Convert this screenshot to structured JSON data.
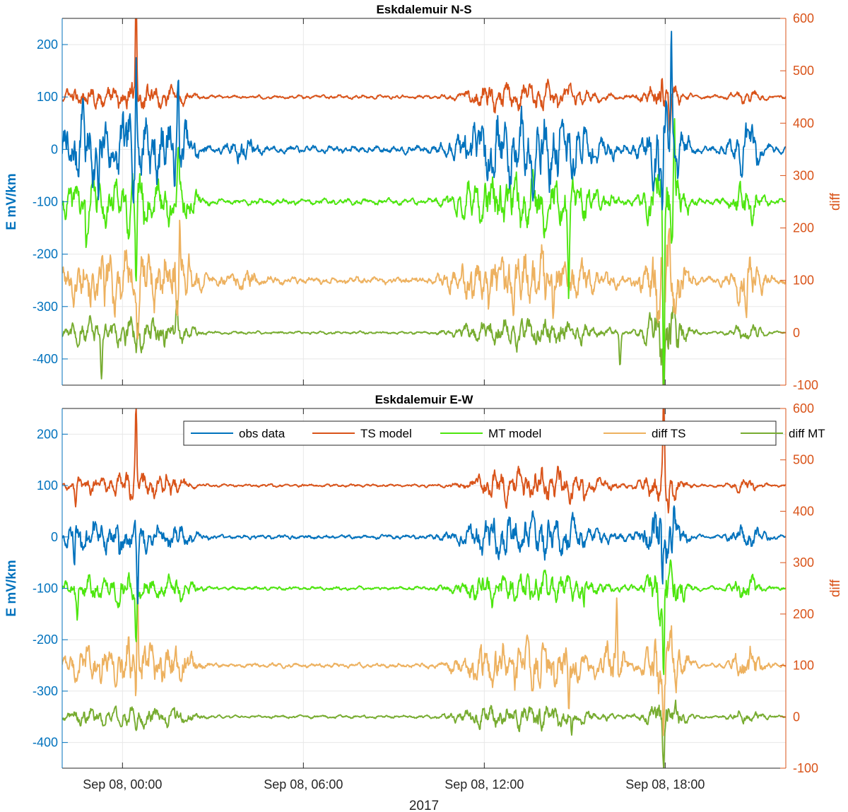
{
  "chart_data": [
    {
      "type": "line",
      "title": "Eskdalemuir N-S",
      "ylabel_left": "E mV/km",
      "ylabel_right": "diff",
      "xlabel": "",
      "x_range_hours": [
        -2.0,
        22.0
      ],
      "ylim_left": [
        -450,
        250
      ],
      "ylim_right": [
        -100,
        600
      ],
      "yticks_left": [
        -400,
        -300,
        -200,
        -100,
        0,
        100,
        200
      ],
      "yticks_right": [
        -100,
        0,
        100,
        200,
        300,
        400,
        500,
        600
      ],
      "xticks": [
        "Sep 08, 00:00",
        "Sep 08, 06:00",
        "Sep 08, 12:00",
        "Sep 08, 18:00"
      ],
      "xtick_hours": [
        0,
        6,
        12,
        18
      ],
      "grid": true,
      "legend": false,
      "series": [
        {
          "name": "obs data",
          "color": "#0072BD",
          "axis": "left",
          "baseline": 0,
          "bursts": [
            [
              -1.4,
              0.8,
              80
            ],
            [
              0.4,
              1.0,
              95
            ],
            [
              1.8,
              0.6,
              70
            ],
            [
              4.0,
              0.5,
              25
            ],
            [
              12.0,
              1.0,
              60
            ],
            [
              14.0,
              1.7,
              90
            ],
            [
              18.0,
              0.6,
              120
            ],
            [
              20.7,
              0.5,
              60
            ]
          ],
          "quiet": 10,
          "spikes": [
            [
              -1.3,
              70
            ],
            [
              -0.8,
              -120
            ],
            [
              0.45,
              175
            ],
            [
              1.85,
              140
            ],
            [
              18.2,
              185
            ],
            [
              17.9,
              -120
            ]
          ]
        },
        {
          "name": "TS model",
          "color": "#D95319",
          "axis": "left",
          "baseline": 100,
          "bursts": [
            [
              -1.2,
              0.8,
              25
            ],
            [
              0.4,
              0.9,
              35
            ],
            [
              1.7,
              0.6,
              20
            ],
            [
              12.2,
              0.8,
              25
            ],
            [
              14.0,
              1.6,
              35
            ],
            [
              17.9,
              0.6,
              40
            ],
            [
              20.7,
              0.5,
              15
            ]
          ],
          "quiet": 5,
          "spikes": [
            [
              0.45,
              190
            ],
            [
              17.9,
              60
            ],
            [
              18.15,
              -60
            ]
          ]
        },
        {
          "name": "MT model",
          "color": "#4DE60E",
          "axis": "left",
          "baseline": -100,
          "bursts": [
            [
              -1.3,
              0.8,
              55
            ],
            [
              0.4,
              1.0,
              70
            ],
            [
              1.8,
              0.6,
              60
            ],
            [
              12.0,
              1.0,
              50
            ],
            [
              14.0,
              1.7,
              70
            ],
            [
              18.0,
              0.6,
              110
            ],
            [
              20.7,
              0.5,
              45
            ]
          ],
          "quiet": 8,
          "spikes": [
            [
              -1.2,
              -80
            ],
            [
              0.45,
              -150
            ],
            [
              1.85,
              70
            ],
            [
              14.8,
              -150
            ],
            [
              17.95,
              -350
            ],
            [
              18.3,
              150
            ]
          ]
        }
      ],
      "diff_series": [
        {
          "name": "diff TS",
          "color": "#EDB15F",
          "axis": "right",
          "baseline": 100,
          "bursts": [
            [
              -1.2,
              0.9,
              60
            ],
            [
              0.4,
              1.0,
              80
            ],
            [
              1.8,
              0.7,
              70
            ],
            [
              4.0,
              0.6,
              25
            ],
            [
              12.0,
              1.0,
              55
            ],
            [
              14.0,
              1.7,
              75
            ],
            [
              18.0,
              0.6,
              130
            ],
            [
              20.7,
              0.5,
              60
            ]
          ],
          "quiet": 10,
          "spikes": [
            [
              -0.6,
              -50
            ],
            [
              0.5,
              -80
            ],
            [
              1.9,
              140
            ],
            [
              17.95,
              -200
            ],
            [
              20.7,
              -40
            ]
          ]
        },
        {
          "name": "diff MT",
          "color": "#77AC30",
          "axis": "right",
          "baseline": 0,
          "bursts": [
            [
              -1.2,
              0.8,
              30
            ],
            [
              0.5,
              1.0,
              40
            ],
            [
              1.8,
              0.6,
              25
            ],
            [
              12.0,
              1.0,
              20
            ],
            [
              14.0,
              1.7,
              40
            ],
            [
              18.0,
              0.6,
              90
            ],
            [
              20.7,
              0.5,
              20
            ]
          ],
          "quiet": 4,
          "spikes": [
            [
              -0.7,
              -60
            ],
            [
              0.45,
              -40
            ],
            [
              1.8,
              40
            ],
            [
              16.5,
              -60
            ],
            [
              17.95,
              -100
            ]
          ]
        }
      ]
    },
    {
      "type": "line",
      "title": "Eskdalemuir E-W",
      "ylabel_left": "E mV/km",
      "ylabel_right": "diff",
      "xlabel": "2017",
      "x_range_hours": [
        -2.0,
        22.0
      ],
      "ylim_left": [
        -450,
        250
      ],
      "ylim_right": [
        -100,
        600
      ],
      "yticks_left": [
        -400,
        -300,
        -200,
        -100,
        0,
        100,
        200
      ],
      "yticks_right": [
        -100,
        0,
        100,
        200,
        300,
        400,
        500,
        600
      ],
      "xticks": [
        "Sep 08, 00:00",
        "Sep 08, 06:00",
        "Sep 08, 12:00",
        "Sep 08, 18:00"
      ],
      "xtick_hours": [
        0,
        6,
        12,
        18
      ],
      "grid": true,
      "legend": true,
      "legend_placement": "top-right",
      "legend_entries": [
        {
          "label": "obs data",
          "color": "#0072BD"
        },
        {
          "label": "TS model",
          "color": "#D95319"
        },
        {
          "label": "MT model",
          "color": "#4DE60E"
        },
        {
          "label": "diff TS",
          "color": "#EDB15F"
        },
        {
          "label": "diff MT",
          "color": "#77AC30"
        }
      ],
      "series": [
        {
          "name": "obs data",
          "color": "#0072BD",
          "axis": "left",
          "baseline": 0,
          "bursts": [
            [
              -1.2,
              0.8,
              40
            ],
            [
              0.3,
              0.9,
              40
            ],
            [
              1.8,
              0.6,
              30
            ],
            [
              12.0,
              1.0,
              35
            ],
            [
              14.0,
              1.7,
              55
            ],
            [
              17.9,
              0.6,
              90
            ],
            [
              20.7,
              0.5,
              35
            ]
          ],
          "quiet": 6,
          "spikes": [
            [
              -1.6,
              -55
            ],
            [
              -0.1,
              -55
            ],
            [
              0.5,
              -120
            ],
            [
              17.9,
              -120
            ],
            [
              18.3,
              70
            ]
          ]
        },
        {
          "name": "TS model",
          "color": "#D95319",
          "axis": "left",
          "baseline": 100,
          "bursts": [
            [
              -1.2,
              0.7,
              20
            ],
            [
              0.4,
              0.9,
              35
            ],
            [
              1.6,
              0.6,
              25
            ],
            [
              12.3,
              0.8,
              20
            ],
            [
              14.0,
              1.7,
              45
            ],
            [
              17.9,
              0.6,
              50
            ],
            [
              20.7,
              0.5,
              15
            ]
          ],
          "quiet": 4,
          "spikes": [
            [
              -1.55,
              -30
            ],
            [
              0.45,
              160
            ],
            [
              15.3,
              -40
            ],
            [
              17.95,
              175
            ],
            [
              18.1,
              -40
            ]
          ]
        },
        {
          "name": "MT model",
          "color": "#4DE60E",
          "axis": "left",
          "baseline": -100,
          "bursts": [
            [
              -1.3,
              0.7,
              30
            ],
            [
              0.3,
              0.9,
              35
            ],
            [
              1.8,
              0.6,
              30
            ],
            [
              12.0,
              1.0,
              30
            ],
            [
              14.0,
              1.7,
              40
            ],
            [
              18.0,
              0.6,
              80
            ],
            [
              20.7,
              0.5,
              30
            ]
          ],
          "quiet": 5,
          "spikes": [
            [
              -1.5,
              -40
            ],
            [
              -0.1,
              -40
            ],
            [
              0.45,
              -120
            ],
            [
              15.3,
              -50
            ],
            [
              17.95,
              -180
            ]
          ]
        }
      ],
      "diff_series": [
        {
          "name": "diff TS",
          "color": "#EDB15F",
          "axis": "right",
          "baseline": 100,
          "bursts": [
            [
              -1.2,
              0.8,
              45
            ],
            [
              0.4,
              0.9,
              70
            ],
            [
              1.8,
              0.6,
              50
            ],
            [
              12.0,
              1.0,
              40
            ],
            [
              14.0,
              1.7,
              60
            ],
            [
              16.3,
              0.4,
              60
            ],
            [
              18.0,
              0.6,
              100
            ],
            [
              20.7,
              0.5,
              50
            ]
          ],
          "quiet": 6,
          "spikes": [
            [
              0.45,
              -90
            ],
            [
              0.5,
              200
            ],
            [
              14.8,
              -120
            ],
            [
              16.4,
              140
            ],
            [
              17.95,
              -150
            ]
          ]
        },
        {
          "name": "diff MT",
          "color": "#77AC30",
          "axis": "right",
          "baseline": 0,
          "bursts": [
            [
              -1.2,
              0.8,
              20
            ],
            [
              0.5,
              1.0,
              25
            ],
            [
              1.8,
              0.6,
              20
            ],
            [
              12.0,
              1.0,
              20
            ],
            [
              14.0,
              1.7,
              30
            ],
            [
              18.0,
              0.6,
              50
            ],
            [
              20.7,
              0.5,
              15
            ]
          ],
          "quiet": 4,
          "spikes": [
            [
              0.45,
              -40
            ],
            [
              14.9,
              -45
            ],
            [
              17.95,
              -70
            ]
          ]
        }
      ]
    }
  ]
}
